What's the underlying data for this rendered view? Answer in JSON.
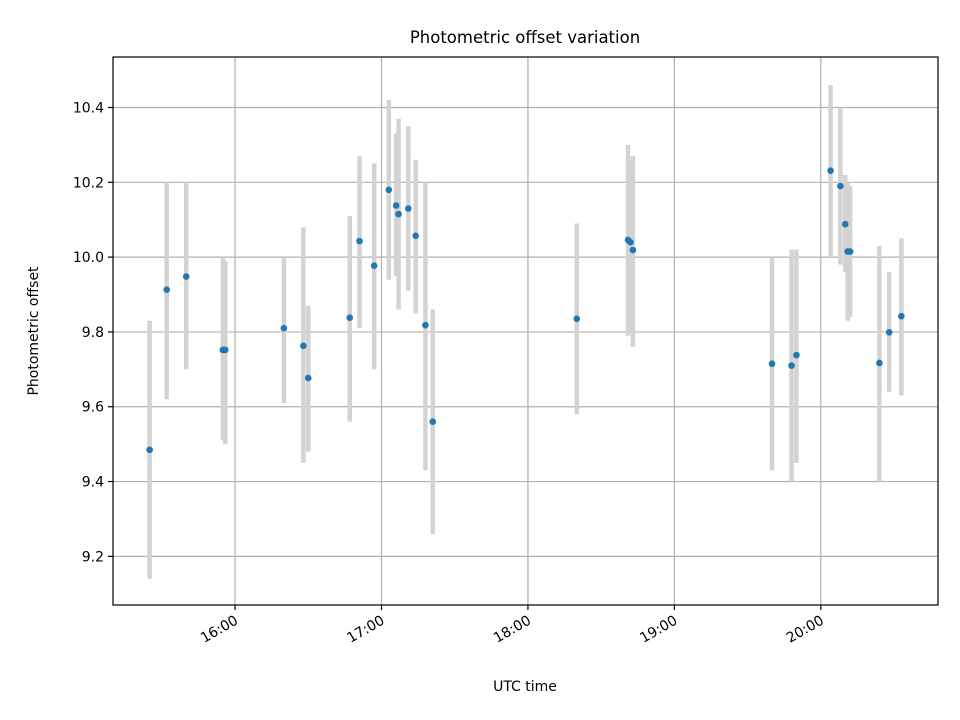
{
  "chart_data": {
    "type": "scatter",
    "title": "Photometric offset variation",
    "xlabel": "UTC time",
    "ylabel": "Photometric offset",
    "xlim": [
      "15:10",
      "20:48"
    ],
    "ylim": [
      9.07,
      10.535
    ],
    "grid": true,
    "colors": {
      "point": "#1f77b4",
      "error_bar": "#d3d3d3",
      "grid": "#b0b0b0"
    },
    "x_ticks": [
      {
        "time": "16:00",
        "label": "16:00"
      },
      {
        "time": "17:00",
        "label": "17:00"
      },
      {
        "time": "18:00",
        "label": "18:00"
      },
      {
        "time": "19:00",
        "label": "19:00"
      },
      {
        "time": "20:00",
        "label": "20:00"
      }
    ],
    "y_ticks": [
      {
        "value": 9.2,
        "label": "9.2"
      },
      {
        "value": 9.4,
        "label": "9.4"
      },
      {
        "value": 9.6,
        "label": "9.6"
      },
      {
        "value": 9.8,
        "label": "9.8"
      },
      {
        "value": 10.0,
        "label": "10.0"
      },
      {
        "value": 10.2,
        "label": "10.2"
      },
      {
        "value": 10.4,
        "label": "10.4"
      }
    ],
    "points": [
      {
        "time": "15:25",
        "y": 9.485,
        "y_low": 9.14,
        "y_high": 9.83
      },
      {
        "time": "15:32",
        "y": 9.913,
        "y_low": 9.62,
        "y_high": 10.2
      },
      {
        "time": "15:40",
        "y": 9.948,
        "y_low": 9.7,
        "y_high": 10.2
      },
      {
        "time": "15:55",
        "y": 9.752,
        "y_low": 9.51,
        "y_high": 10.0
      },
      {
        "time": "15:56",
        "y": 9.752,
        "y_low": 9.5,
        "y_high": 9.99
      },
      {
        "time": "16:20",
        "y": 9.81,
        "y_low": 9.61,
        "y_high": 10.0
      },
      {
        "time": "16:28",
        "y": 9.763,
        "y_low": 9.45,
        "y_high": 10.08
      },
      {
        "time": "16:30",
        "y": 9.677,
        "y_low": 9.48,
        "y_high": 9.87
      },
      {
        "time": "16:47",
        "y": 9.838,
        "y_low": 9.56,
        "y_high": 10.11
      },
      {
        "time": "16:51",
        "y": 10.043,
        "y_low": 9.81,
        "y_high": 10.27
      },
      {
        "time": "16:57",
        "y": 9.977,
        "y_low": 9.7,
        "y_high": 10.25
      },
      {
        "time": "17:03",
        "y": 10.18,
        "y_low": 9.94,
        "y_high": 10.42
      },
      {
        "time": "17:06",
        "y": 10.138,
        "y_low": 9.95,
        "y_high": 10.33
      },
      {
        "time": "17:07",
        "y": 10.115,
        "y_low": 9.86,
        "y_high": 10.37
      },
      {
        "time": "17:11",
        "y": 10.13,
        "y_low": 9.91,
        "y_high": 10.35
      },
      {
        "time": "17:14",
        "y": 10.057,
        "y_low": 9.85,
        "y_high": 10.26
      },
      {
        "time": "17:18",
        "y": 9.818,
        "y_low": 9.43,
        "y_high": 10.2
      },
      {
        "time": "17:21",
        "y": 9.56,
        "y_low": 9.26,
        "y_high": 9.86
      },
      {
        "time": "18:20",
        "y": 9.835,
        "y_low": 9.58,
        "y_high": 10.09
      },
      {
        "time": "18:41",
        "y": 10.046,
        "y_low": 9.79,
        "y_high": 10.3
      },
      {
        "time": "18:42",
        "y": 10.04,
        "y_low": 9.8,
        "y_high": 10.26
      },
      {
        "time": "18:43",
        "y": 10.019,
        "y_low": 9.76,
        "y_high": 10.27
      },
      {
        "time": "19:40",
        "y": 9.715,
        "y_low": 9.43,
        "y_high": 10.0
      },
      {
        "time": "19:48",
        "y": 9.71,
        "y_low": 9.4,
        "y_high": 10.02
      },
      {
        "time": "19:50",
        "y": 9.738,
        "y_low": 9.45,
        "y_high": 10.02
      },
      {
        "time": "20:04",
        "y": 10.231,
        "y_low": 10.0,
        "y_high": 10.46
      },
      {
        "time": "20:08",
        "y": 10.19,
        "y_low": 9.98,
        "y_high": 10.4
      },
      {
        "time": "20:10",
        "y": 10.088,
        "y_low": 9.96,
        "y_high": 10.22
      },
      {
        "time": "20:11",
        "y": 10.015,
        "y_low": 9.83,
        "y_high": 10.2
      },
      {
        "time": "20:12",
        "y": 10.015,
        "y_low": 9.84,
        "y_high": 10.19
      },
      {
        "time": "20:24",
        "y": 9.717,
        "y_low": 9.4,
        "y_high": 10.03
      },
      {
        "time": "20:28",
        "y": 9.799,
        "y_low": 9.64,
        "y_high": 9.96
      },
      {
        "time": "20:33",
        "y": 9.842,
        "y_low": 9.63,
        "y_high": 10.05
      }
    ]
  }
}
